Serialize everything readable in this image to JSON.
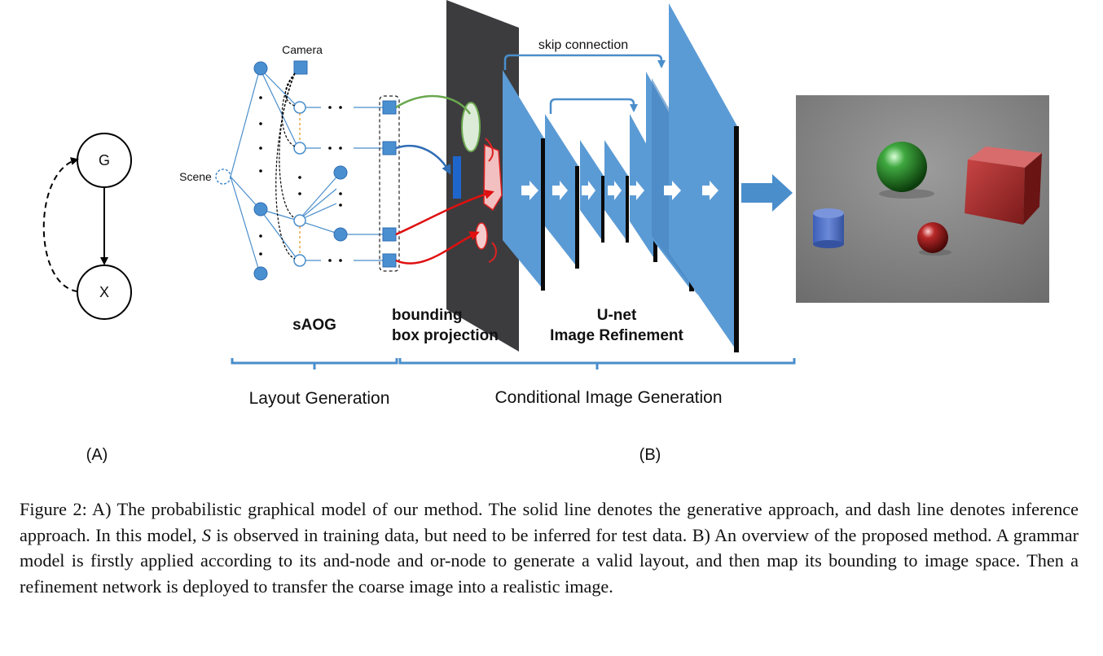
{
  "panel_a": {
    "node_g": "G",
    "node_x": "X",
    "panel_label": "(A)"
  },
  "panel_b": {
    "camera_label": "Camera",
    "scene_label": "Scene",
    "saog_label": "sAOG",
    "bbox_label_line1": "bounding",
    "bbox_label_line2": "box projection",
    "unet_label_line1": "U-net",
    "unet_label_line2": "Image Refinement",
    "skip_label": "skip connection",
    "layout_generation": "Layout Generation",
    "conditional_generation": "Conditional Image Generation",
    "panel_label": "(B)",
    "colors": {
      "node_fill": "#4a90d0",
      "line_blue": "#4a8ecb",
      "green_curve": "#6aa84f",
      "red_curve": "#e01010",
      "dark_canvas": "#3c3c3e",
      "layer_fill": "#5b9bd5",
      "bracket": "#4a8ecb"
    }
  },
  "caption": {
    "part1": "Figure 2: A) The probabilistic graphical model of our method. The solid line denotes the generative approach, and dash line denotes inference approach. In this model, ",
    "var": "S",
    "part2": " is observed in training data, but need to be inferred for test data. B) An overview of the proposed method. A grammar model is firstly applied according to its and-node and or-node to generate a valid layout, and then map its bounding to image space. Then a refinement network is deployed to transfer the coarse image into a realistic image."
  }
}
